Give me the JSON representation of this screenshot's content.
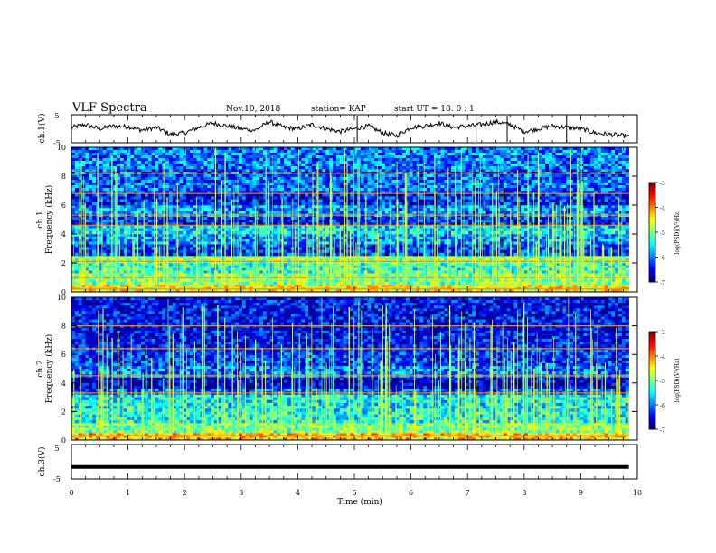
{
  "header": {
    "title": "VLF Spectra",
    "date": "Nov.10, 2018",
    "station": "station= KAP",
    "start": "start  UT =   18: 0  : 1"
  },
  "colorbar": {
    "label": "log(PSD)(V²/Hz)",
    "ticks": [
      "-3",
      "-4",
      "-5",
      "-6",
      "-7"
    ]
  },
  "chart_data": [
    {
      "type": "line",
      "name": "ch1-waveform",
      "ylabel": "ch.1(V)",
      "ylim": [
        -5,
        5
      ],
      "y_ticks": [
        "5",
        "-5"
      ],
      "x_range_min": [
        0,
        9.85
      ],
      "x": [
        0,
        0.25,
        0.5,
        0.75,
        1.0,
        1.25,
        1.5,
        1.75,
        2.0,
        2.25,
        2.5,
        2.75,
        3.0,
        3.25,
        3.5,
        3.75,
        4.0,
        4.25,
        4.5,
        4.75,
        5.0,
        5.25,
        5.5,
        5.75,
        6.0,
        6.25,
        6.5,
        6.75,
        7.0,
        7.25,
        7.5,
        7.75,
        8.0,
        8.25,
        8.5,
        8.75,
        9.0,
        9.25,
        9.5,
        9.75,
        9.85
      ],
      "y": [
        0.5,
        1.5,
        0.0,
        1.0,
        0.8,
        -0.5,
        0.5,
        -2.0,
        -1.5,
        0.5,
        2.0,
        1.0,
        0.0,
        -0.5,
        2.5,
        0.5,
        0.0,
        1.5,
        0.0,
        -1.0,
        0.0,
        1.0,
        -1.5,
        -2.5,
        0.5,
        1.0,
        2.0,
        0.5,
        1.0,
        1.5,
        2.5,
        1.5,
        -1.0,
        0.0,
        1.0,
        0.5,
        0.0,
        -1.5,
        -2.0,
        -2.5,
        -2.8
      ]
    },
    {
      "type": "heatmap",
      "name": "ch1-spectrogram",
      "ylabel": "Frequency (kHz)",
      "channel_label": "ch.1",
      "ylim": [
        0,
        10
      ],
      "y_ticks": [
        "0",
        "2",
        "4",
        "6",
        "8",
        "10"
      ],
      "z_range": [
        -7,
        -3
      ],
      "bands_khz": [
        {
          "from": 0.0,
          "to": 0.5,
          "level": -4.5
        },
        {
          "from": 0.5,
          "to": 1.3,
          "level": -5.0
        },
        {
          "from": 1.3,
          "to": 2.0,
          "level": -5.3
        },
        {
          "from": 2.0,
          "to": 2.5,
          "level": -5.0
        },
        {
          "from": 2.5,
          "to": 3.3,
          "level": -6.3
        },
        {
          "from": 3.3,
          "to": 4.0,
          "level": -5.9
        },
        {
          "from": 4.0,
          "to": 4.6,
          "level": -5.6
        },
        {
          "from": 4.6,
          "to": 5.2,
          "level": -6.4
        },
        {
          "from": 5.2,
          "to": 6.0,
          "level": -5.9
        },
        {
          "from": 6.0,
          "to": 7.0,
          "level": -6.4
        },
        {
          "from": 7.0,
          "to": 8.5,
          "level": -6.1
        },
        {
          "from": 8.5,
          "to": 10.0,
          "level": -6.0
        }
      ],
      "lines_khz": [
        0.2,
        1.0,
        2.1,
        4.6,
        5.3,
        6.8,
        8.2
      ],
      "bursts": 170
    },
    {
      "type": "heatmap",
      "name": "ch2-spectrogram",
      "ylabel": "Frequency (kHz)",
      "channel_label": "ch.2",
      "ylim": [
        0,
        10
      ],
      "y_ticks": [
        "0",
        "2",
        "4",
        "6",
        "8",
        "10"
      ],
      "z_range": [
        -7,
        -3
      ],
      "bands_khz": [
        {
          "from": 0.0,
          "to": 0.5,
          "level": -4.3
        },
        {
          "from": 0.5,
          "to": 1.2,
          "level": -5.0
        },
        {
          "from": 1.2,
          "to": 2.0,
          "level": -5.4
        },
        {
          "from": 2.0,
          "to": 3.2,
          "level": -5.5
        },
        {
          "from": 3.2,
          "to": 3.6,
          "level": -6.2
        },
        {
          "from": 3.6,
          "to": 4.4,
          "level": -6.7
        },
        {
          "from": 4.4,
          "to": 5.2,
          "level": -6.0
        },
        {
          "from": 5.2,
          "to": 6.5,
          "level": -6.3
        },
        {
          "from": 6.5,
          "to": 10.0,
          "level": -6.5
        }
      ],
      "lines_khz": [
        0.3,
        3.3,
        4.5,
        6.4,
        8.0
      ],
      "bursts": 150
    },
    {
      "type": "line",
      "name": "ch3-waveform",
      "ylabel": "ch.3(V)",
      "ylim": [
        -5,
        5
      ],
      "y_ticks": [
        "5",
        "-5"
      ],
      "x": [
        0,
        9.85
      ],
      "y": [
        -1.5,
        -1.5
      ]
    }
  ],
  "time_axis": {
    "xlabel": "Time (min)",
    "xlim": [
      0,
      10
    ],
    "ticks": [
      "0",
      "1",
      "2",
      "3",
      "4",
      "5",
      "6",
      "7",
      "8",
      "9",
      "10"
    ]
  }
}
